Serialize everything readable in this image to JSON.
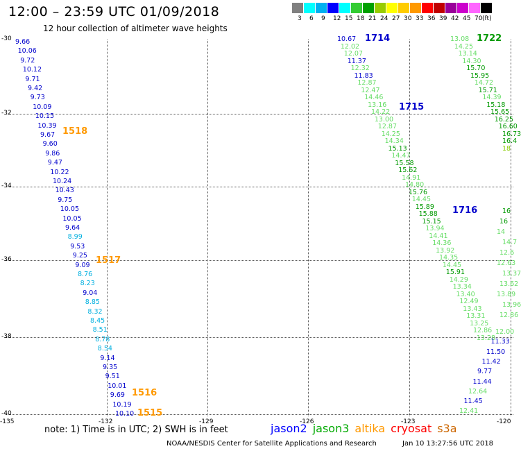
{
  "title": "12:00 – 23:59 UTC 01/09/2018",
  "subtitle": "12 hour collection of altimeter wave heights",
  "legend": {
    "colors": [
      "#808080",
      "#00ffff",
      "#00b0f0",
      "#0000ff",
      "#00ffff",
      "#33cc33",
      "#00a000",
      "#99cc00",
      "#ffff00",
      "#ffcc00",
      "#ff9900",
      "#ff0000",
      "#c00000",
      "#990099",
      "#cc00cc",
      "#ff66ff",
      "#000000"
    ],
    "labels": [
      "3",
      "6",
      "9",
      "12",
      "15",
      "18",
      "21",
      "24",
      "27",
      "30",
      "33",
      "36",
      "39",
      "42",
      "45",
      "70",
      "(ft)"
    ]
  },
  "lat_labels": [
    "-30",
    "-32",
    "-34",
    "-36",
    "-38",
    "-40"
  ],
  "lon_labels": [
    "-135",
    "-132",
    "-129",
    "-126",
    "-123",
    "-120"
  ],
  "pass_labels": [
    {
      "text": "1714",
      "color": "#0000cc"
    },
    {
      "text": "1722",
      "color": "#009900"
    },
    {
      "text": "1715",
      "color": "#0000cc"
    },
    {
      "text": "1518",
      "color": "#ff9900"
    },
    {
      "text": "1716",
      "color": "#0000cc"
    },
    {
      "text": "1517",
      "color": "#ff9900"
    },
    {
      "text": "1516",
      "color": "#ff9900"
    },
    {
      "text": "1515",
      "color": "#ff9900"
    }
  ],
  "tracks": {
    "altika_left": [
      "9.66",
      "10.06",
      "9.72",
      "10.12",
      "9.71",
      "9.42",
      "9.73",
      "10.09",
      "10.15",
      "10.39",
      "9.67",
      "9.60",
      "9.86",
      "9.47",
      "10.22",
      "10.24",
      "10.43",
      "9.75",
      "10.05",
      "10.05",
      "9.64",
      "8.99",
      "9.53",
      "9.25",
      "9.09",
      "8.76",
      "8.23",
      "9.04",
      "8.85",
      "8.32",
      "8.45",
      "8.51",
      "8.78",
      "8.54",
      "9.14",
      "9.35",
      "9.51",
      "10.01",
      "9.69",
      "10.19",
      "10.10"
    ],
    "jason2_top": [
      "10.67",
      "12.02",
      "12.07",
      "11.37",
      "12.32",
      "11.83",
      "12.87",
      "12.47",
      "14.46",
      "13.16",
      "14.22",
      "13.00",
      "12.87",
      "14.25",
      "14.34",
      "15.13",
      "14.47",
      "15.58",
      "15.62",
      "14.91",
      "14.80",
      "15.76",
      "14.45",
      "15.89",
      "15.88",
      "15.15",
      "13.94",
      "14.41",
      "14.36",
      "13.92",
      "14.35",
      "14.45",
      "15.91",
      "14.29",
      "13.34",
      "13.40",
      "12.49",
      "13.43",
      "13.31",
      "13.25",
      "12.86",
      "13.28"
    ],
    "jason3_right": [
      "13.08",
      "14.25",
      "13.14",
      "14.30",
      "15.70",
      "15.95",
      "14.72",
      "15.71",
      "14.39",
      "15.18",
      "15.65",
      "16.25",
      "16.60",
      "16.73",
      "16.4",
      "18"
    ],
    "jason2_bottom": [
      "12.00",
      "11.33",
      "11.50",
      "11.42",
      "9.77",
      "11.44",
      "12.64",
      "11.45",
      "12.41"
    ],
    "right_edge": [
      "16",
      "16",
      "14",
      "14.7",
      "12.6",
      "12.63",
      "13.37",
      "13.62",
      "13.89",
      "13.96",
      "12.86"
    ]
  },
  "note": "note:  1) Time is in UTC;  2) SWH is in feet",
  "satellites": [
    {
      "name": "jason2",
      "color": "#0000ff"
    },
    {
      "name": "jason3",
      "color": "#00aa00"
    },
    {
      "name": "altika",
      "color": "#ff9900"
    },
    {
      "name": "cryosat",
      "color": "#ff0000"
    },
    {
      "name": "s3a",
      "color": "#cc6600"
    }
  ],
  "credit": "NOAA/NESDIS Center for Satellite Applications and Research",
  "timestamp": "Jan 10 13:27:56 UTC 2018"
}
